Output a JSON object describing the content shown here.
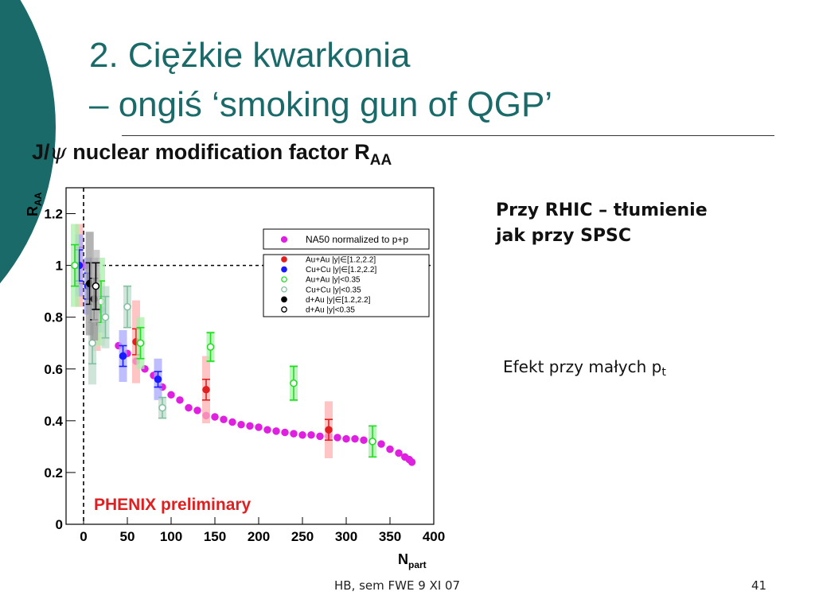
{
  "slide": {
    "title_line1": "2. Ciężkie kwarkonia",
    "title_line2": "– ongiś ‘smoking gun of QGP’",
    "plot_title_prefix": "J/",
    "plot_title_psi": "ψ",
    "plot_title_main": " nuclear modification factor R",
    "plot_title_sub": "AA",
    "right_text_line1": "Przy RHIC – tłumienie",
    "right_text_line2": "jak przy SPSC",
    "effect_text": "Efekt przy małych p",
    "effect_sub": "t",
    "footer": "HB, sem FWE 9 XI 07",
    "page_number": "41",
    "colors": {
      "title": "#1b6a6a",
      "deco_dark": "#1b6a6a",
      "deco_light": "#a5cfcf"
    }
  },
  "chart_data": {
    "type": "scatter",
    "xlabel": "N",
    "xlabel_sub": "part",
    "ylabel": "R",
    "ylabel_sub": "AA",
    "xlim": [
      -20,
      400
    ],
    "ylim": [
      0,
      1.3
    ],
    "x_ticks": [
      0,
      50,
      100,
      150,
      200,
      250,
      300,
      350,
      400
    ],
    "y_ticks": [
      0,
      0.2,
      0.4,
      0.6,
      0.8,
      1,
      1.2
    ],
    "y_tick_labels": [
      "0",
      "0.2",
      "0.4",
      "0.6",
      "0.8",
      "1",
      "1.2"
    ],
    "reference_line_y": 1,
    "reference_line_x": 0,
    "annotation": "PHENIX preliminary",
    "legend_position": "top-right",
    "series": [
      {
        "name": "NA50 normalized to p+p",
        "marker": "filled-circle",
        "color": "#e020e0",
        "points": [
          [
            2,
            1.0
          ],
          [
            40,
            0.69
          ],
          [
            50,
            0.66
          ],
          [
            60,
            0.63
          ],
          [
            70,
            0.6
          ],
          [
            80,
            0.575
          ],
          [
            90,
            0.53
          ],
          [
            100,
            0.5
          ],
          [
            110,
            0.48
          ],
          [
            120,
            0.45
          ],
          [
            130,
            0.44
          ],
          [
            140,
            0.42
          ],
          [
            150,
            0.415
          ],
          [
            160,
            0.405
          ],
          [
            170,
            0.395
          ],
          [
            180,
            0.385
          ],
          [
            190,
            0.38
          ],
          [
            200,
            0.375
          ],
          [
            210,
            0.365
          ],
          [
            220,
            0.36
          ],
          [
            230,
            0.355
          ],
          [
            240,
            0.35
          ],
          [
            250,
            0.345
          ],
          [
            260,
            0.345
          ],
          [
            270,
            0.34
          ],
          [
            280,
            0.34
          ],
          [
            290,
            0.335
          ],
          [
            300,
            0.33
          ],
          [
            310,
            0.33
          ],
          [
            320,
            0.325
          ],
          [
            330,
            0.32
          ],
          [
            340,
            0.31
          ],
          [
            350,
            0.29
          ],
          [
            360,
            0.275
          ],
          [
            367,
            0.26
          ],
          [
            372,
            0.25
          ],
          [
            375,
            0.24
          ]
        ]
      },
      {
        "name": "Au+Au |y|∈[1.2,2.2]",
        "marker": "filled-circle",
        "color": "#e02020",
        "points": [
          [
            -5,
            1.0,
            0.07,
            0.16
          ],
          [
            15,
            0.82,
            0.05,
            0.15
          ],
          [
            60,
            0.705,
            0.05,
            0.16
          ],
          [
            140,
            0.52,
            0.04,
            0.13
          ],
          [
            280,
            0.365,
            0.04,
            0.11
          ]
        ]
      },
      {
        "name": "Cu+Cu |y|∈[1.2,2.2]",
        "marker": "filled-circle",
        "color": "#1a1aff",
        "points": [
          [
            -5,
            1.0,
            0.06,
            0.12
          ],
          [
            5,
            0.92,
            0.05,
            0.11
          ],
          [
            20,
            0.83,
            0.05,
            0.09
          ],
          [
            45,
            0.65,
            0.04,
            0.1
          ],
          [
            85,
            0.56,
            0.03,
            0.08
          ]
        ]
      },
      {
        "name": "Au+Au |y|<0.35",
        "marker": "open-circle",
        "color": "#20dd20",
        "points": [
          [
            -10,
            1.0,
            0.08,
            0.16
          ],
          [
            20,
            0.86,
            0.08,
            0.17
          ],
          [
            65,
            0.7,
            0.06,
            0.1
          ],
          [
            145,
            0.685,
            0.055,
            0.06
          ],
          [
            240,
            0.545,
            0.065,
            0.07
          ],
          [
            330,
            0.32,
            0.06,
            0.06
          ]
        ]
      },
      {
        "name": "Cu+Cu |y|<0.35",
        "marker": "open-circle",
        "color": "#80c0a0",
        "points": [
          [
            10,
            0.7,
            0.08,
            0.16
          ],
          [
            25,
            0.8,
            0.08,
            0.12
          ],
          [
            50,
            0.84,
            0.08,
            0.08
          ],
          [
            90,
            0.45,
            0.04,
            0.04
          ]
        ]
      },
      {
        "name": "d+Au |y|∈[1.2,2.2]",
        "marker": "filled-circle",
        "color": "#000000",
        "points": [
          [
            7,
            0.93,
            0.08,
            0.2
          ],
          [
            12,
            0.87,
            0.08,
            0.16
          ]
        ]
      },
      {
        "name": "d+Au |y|<0.35",
        "marker": "open-circle",
        "color": "#000000",
        "points": [
          [
            14,
            0.92,
            0.09,
            0.14
          ]
        ]
      }
    ]
  }
}
